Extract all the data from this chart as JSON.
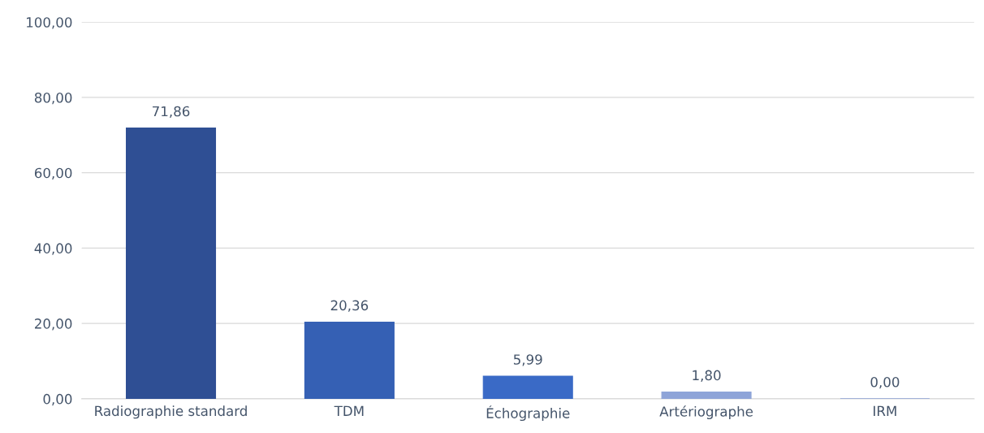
{
  "chart_data": {
    "type": "bar",
    "categories": [
      "Radiographie standard",
      "TDM",
      "Échographie",
      "Artériographe",
      "IRM"
    ],
    "values": [
      71.86,
      20.36,
      5.99,
      1.8,
      0.0
    ],
    "colors": [
      "#2f4f94",
      "#3560b4",
      "#3a6ac6",
      "#8ea4d8",
      "#8ea4d8"
    ],
    "value_labels": [
      "71,86",
      "20,36",
      "5,99",
      "1,80",
      "0,00"
    ],
    "ylim": [
      0,
      100
    ],
    "yticks": [
      {
        "value": 0,
        "label": "0,00"
      },
      {
        "value": 20,
        "label": "20,00"
      },
      {
        "value": 40,
        "label": "40,00"
      },
      {
        "value": 60,
        "label": "60,00"
      },
      {
        "value": 80,
        "label": "80,00"
      },
      {
        "value": 100,
        "label": "100,00"
      }
    ],
    "grid": "y"
  }
}
